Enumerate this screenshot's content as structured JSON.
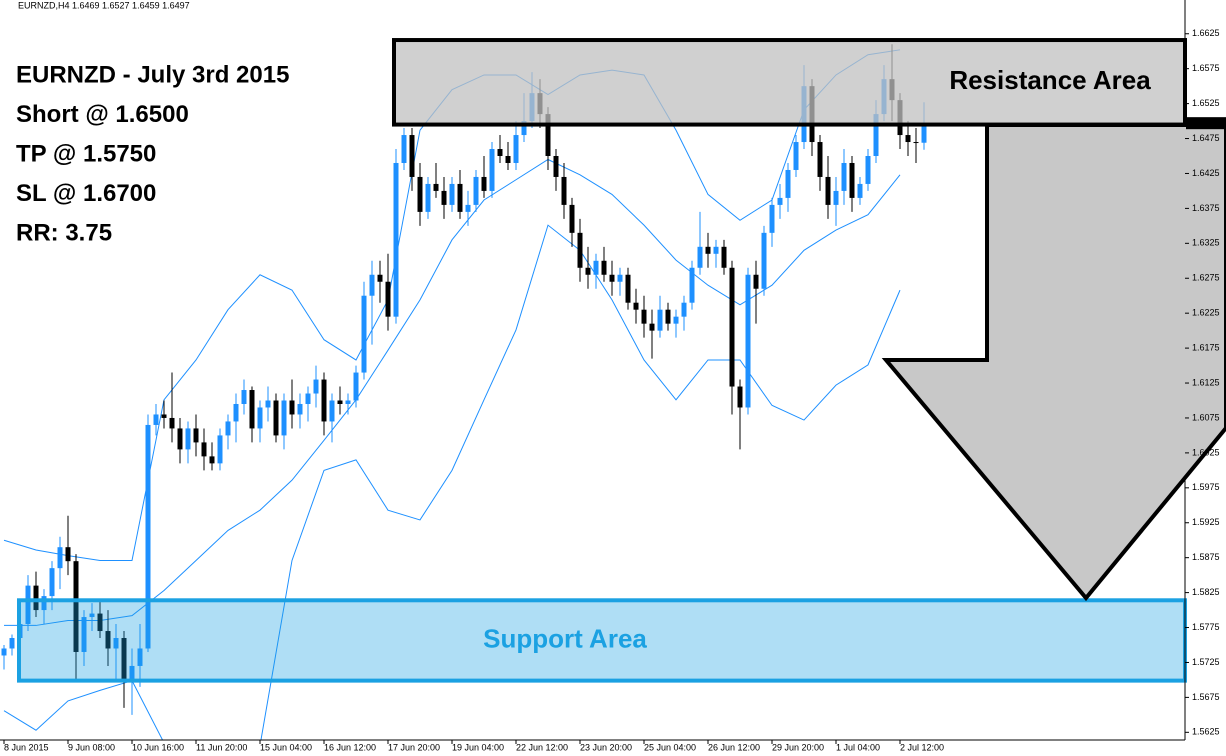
{
  "chart_data": {
    "type": "candlestick",
    "header": "EURNZD,H4  1.6469 1.6527 1.6459 1.6497",
    "annotations": [
      "EURNZD - July 3rd 2015",
      "Short @ 1.6500",
      "TP @ 1.5750",
      "SL @ 1.6700",
      "RR: 3.75"
    ],
    "zones": [
      {
        "label": "Resistance Area",
        "ylim": [
          1.6495,
          1.6616
        ],
        "color": "#c0c0c0"
      },
      {
        "label": "Support Area",
        "ylim": [
          1.5699,
          1.5814
        ],
        "color": "#1ba1e2"
      }
    ],
    "up_color": "#1e90ff",
    "down_color": "#000000",
    "band_color": "#1e90ff",
    "ylim": [
      1.5614,
      1.6659
    ],
    "yticks": [
      1.5625,
      1.5675,
      1.5725,
      1.5775,
      1.5825,
      1.5875,
      1.5925,
      1.5975,
      1.6025,
      1.6075,
      1.6125,
      1.6175,
      1.6225,
      1.6275,
      1.6325,
      1.6375,
      1.6425,
      1.6475,
      1.6525,
      1.6575,
      1.6625
    ],
    "categories": [
      "8 Jun 2015",
      null,
      null,
      null,
      null,
      null,
      null,
      null,
      "9 Jun 08:00",
      null,
      null,
      null,
      null,
      null,
      null,
      null,
      "10 Jun 16:00",
      null,
      null,
      null,
      null,
      null,
      null,
      null,
      "11 Jun 20:00",
      null,
      null,
      null,
      null,
      null,
      null,
      null,
      "15 Jun 04:00",
      null,
      null,
      null,
      null,
      null,
      null,
      null,
      "16 Jun 12:00",
      null,
      null,
      null,
      null,
      null,
      null,
      null,
      "17 Jun 20:00",
      null,
      null,
      null,
      null,
      null,
      null,
      null,
      "19 Jun 04:00",
      null,
      null,
      null,
      null,
      null,
      null,
      null,
      "22 Jun 12:00",
      null,
      null,
      null,
      null,
      null,
      null,
      null,
      "23 Jun 20:00",
      null,
      null,
      null,
      null,
      null,
      null,
      null,
      "25 Jun 04:00",
      null,
      null,
      null,
      null,
      null,
      null,
      null,
      "26 Jun 12:00",
      null,
      null,
      null,
      null,
      null,
      null,
      null,
      "29 Jun 20:00",
      null,
      null,
      null,
      null,
      null,
      null,
      null,
      "1 Jul 04:00",
      null,
      null,
      null,
      null,
      null,
      null,
      null,
      "2 Jul 12:00",
      null,
      null,
      null
    ],
    "ohlc": [
      [
        1.5735,
        1.575,
        1.5715,
        1.5745
      ],
      [
        1.5745,
        1.5765,
        1.5735,
        1.576
      ],
      [
        1.576,
        1.579,
        1.575,
        1.578
      ],
      [
        1.578,
        1.585,
        1.577,
        1.5835
      ],
      [
        1.5835,
        1.5855,
        1.579,
        1.58
      ],
      [
        1.58,
        1.583,
        1.578,
        1.582
      ],
      [
        1.582,
        1.587,
        1.58,
        1.586
      ],
      [
        1.586,
        1.5905,
        1.583,
        1.589
      ],
      [
        1.589,
        1.5935,
        1.585,
        1.587
      ],
      [
        1.587,
        1.588,
        1.57,
        1.574
      ],
      [
        1.574,
        1.58,
        1.572,
        1.579
      ],
      [
        1.579,
        1.581,
        1.577,
        1.5795
      ],
      [
        1.5795,
        1.5815,
        1.576,
        1.577
      ],
      [
        1.577,
        1.58,
        1.572,
        1.5745
      ],
      [
        1.5745,
        1.578,
        1.57,
        1.576
      ],
      [
        1.576,
        1.577,
        1.566,
        1.57
      ],
      [
        1.57,
        1.5745,
        1.565,
        1.572
      ],
      [
        1.572,
        1.578,
        1.569,
        1.5745
      ],
      [
        1.5745,
        1.608,
        1.574,
        1.6065
      ],
      [
        1.6065,
        1.6095,
        1.605,
        1.608
      ],
      [
        1.608,
        1.61,
        1.606,
        1.6075
      ],
      [
        1.6075,
        1.614,
        1.604,
        1.606
      ],
      [
        1.606,
        1.6075,
        1.601,
        1.603
      ],
      [
        1.603,
        1.607,
        1.601,
        1.606
      ],
      [
        1.606,
        1.608,
        1.602,
        1.604
      ],
      [
        1.604,
        1.606,
        1.6,
        1.602
      ],
      [
        1.602,
        1.604,
        1.6,
        1.601
      ],
      [
        1.601,
        1.606,
        1.6,
        1.605
      ],
      [
        1.605,
        1.608,
        1.603,
        1.607
      ],
      [
        1.607,
        1.611,
        1.604,
        1.6095
      ],
      [
        1.6095,
        1.613,
        1.608,
        1.6115
      ],
      [
        1.6115,
        1.612,
        1.604,
        1.606
      ],
      [
        1.606,
        1.61,
        1.604,
        1.609
      ],
      [
        1.609,
        1.612,
        1.607,
        1.61
      ],
      [
        1.61,
        1.611,
        1.604,
        1.605
      ],
      [
        1.605,
        1.611,
        1.603,
        1.61
      ],
      [
        1.61,
        1.613,
        1.606,
        1.608
      ],
      [
        1.608,
        1.611,
        1.606,
        1.6095
      ],
      [
        1.6095,
        1.612,
        1.607,
        1.611
      ],
      [
        1.611,
        1.615,
        1.609,
        1.613
      ],
      [
        1.613,
        1.614,
        1.605,
        1.607
      ],
      [
        1.607,
        1.611,
        1.604,
        1.61
      ],
      [
        1.61,
        1.612,
        1.608,
        1.6095
      ],
      [
        1.6095,
        1.611,
        1.608,
        1.61
      ],
      [
        1.61,
        1.615,
        1.609,
        1.614
      ],
      [
        1.614,
        1.627,
        1.613,
        1.625
      ],
      [
        1.625,
        1.63,
        1.618,
        1.628
      ],
      [
        1.628,
        1.63,
        1.624,
        1.627
      ],
      [
        1.627,
        1.631,
        1.62,
        1.622
      ],
      [
        1.622,
        1.646,
        1.621,
        1.644
      ],
      [
        1.644,
        1.649,
        1.643,
        1.648
      ],
      [
        1.648,
        1.649,
        1.64,
        1.642
      ],
      [
        1.642,
        1.644,
        1.635,
        1.637
      ],
      [
        1.637,
        1.642,
        1.636,
        1.641
      ],
      [
        1.641,
        1.644,
        1.639,
        1.64
      ],
      [
        1.64,
        1.642,
        1.636,
        1.638
      ],
      [
        1.638,
        1.642,
        1.637,
        1.641
      ],
      [
        1.641,
        1.643,
        1.636,
        1.637
      ],
      [
        1.637,
        1.64,
        1.635,
        1.638
      ],
      [
        1.638,
        1.643,
        1.637,
        1.642
      ],
      [
        1.642,
        1.645,
        1.639,
        1.64
      ],
      [
        1.64,
        1.647,
        1.639,
        1.646
      ],
      [
        1.646,
        1.648,
        1.644,
        1.645
      ],
      [
        1.645,
        1.647,
        1.643,
        1.644
      ],
      [
        1.644,
        1.65,
        1.643,
        1.648
      ],
      [
        1.648,
        1.654,
        1.647,
        1.65
      ],
      [
        1.65,
        1.657,
        1.649,
        1.654
      ],
      [
        1.654,
        1.656,
        1.649,
        1.651
      ],
      [
        1.651,
        1.652,
        1.643,
        1.645
      ],
      [
        1.645,
        1.646,
        1.64,
        1.642
      ],
      [
        1.642,
        1.644,
        1.636,
        1.638
      ],
      [
        1.638,
        1.639,
        1.632,
        1.634
      ],
      [
        1.634,
        1.636,
        1.627,
        1.629
      ],
      [
        1.629,
        1.632,
        1.626,
        1.628
      ],
      [
        1.628,
        1.631,
        1.626,
        1.63
      ],
      [
        1.63,
        1.632,
        1.627,
        1.628
      ],
      [
        1.628,
        1.63,
        1.625,
        1.627
      ],
      [
        1.627,
        1.629,
        1.625,
        1.628
      ],
      [
        1.628,
        1.629,
        1.623,
        1.624
      ],
      [
        1.624,
        1.626,
        1.621,
        1.623
      ],
      [
        1.623,
        1.625,
        1.619,
        1.621
      ],
      [
        1.621,
        1.623,
        1.616,
        1.62
      ],
      [
        1.62,
        1.625,
        1.619,
        1.623
      ],
      [
        1.623,
        1.624,
        1.62,
        1.621
      ],
      [
        1.621,
        1.623,
        1.619,
        1.622
      ],
      [
        1.622,
        1.625,
        1.62,
        1.624
      ],
      [
        1.624,
        1.63,
        1.623,
        1.629
      ],
      [
        1.629,
        1.637,
        1.628,
        1.632
      ],
      [
        1.632,
        1.634,
        1.629,
        1.631
      ],
      [
        1.631,
        1.633,
        1.629,
        1.632
      ],
      [
        1.632,
        1.633,
        1.628,
        1.629
      ],
      [
        1.629,
        1.63,
        1.608,
        1.612
      ],
      [
        1.612,
        1.613,
        1.603,
        1.609
      ],
      [
        1.609,
        1.629,
        1.608,
        1.628
      ],
      [
        1.628,
        1.63,
        1.621,
        1.626
      ],
      [
        1.626,
        1.635,
        1.625,
        1.634
      ],
      [
        1.634,
        1.639,
        1.632,
        1.638
      ],
      [
        1.638,
        1.641,
        1.636,
        1.639
      ],
      [
        1.639,
        1.644,
        1.637,
        1.643
      ],
      [
        1.643,
        1.648,
        1.642,
        1.647
      ],
      [
        1.647,
        1.658,
        1.646,
        1.655
      ],
      [
        1.655,
        1.656,
        1.645,
        1.647
      ],
      [
        1.647,
        1.648,
        1.64,
        1.642
      ],
      [
        1.642,
        1.645,
        1.636,
        1.638
      ],
      [
        1.638,
        1.642,
        1.635,
        1.64
      ],
      [
        1.64,
        1.646,
        1.638,
        1.644
      ],
      [
        1.644,
        1.645,
        1.637,
        1.639
      ],
      [
        1.639,
        1.642,
        1.638,
        1.641
      ],
      [
        1.641,
        1.646,
        1.64,
        1.645
      ],
      [
        1.645,
        1.653,
        1.644,
        1.651
      ],
      [
        1.651,
        1.658,
        1.65,
        1.656
      ],
      [
        1.656,
        1.661,
        1.65,
        1.653
      ],
      [
        1.653,
        1.654,
        1.646,
        1.648
      ],
      [
        1.648,
        1.65,
        1.645,
        1.647
      ],
      [
        1.647,
        1.649,
        1.644,
        1.6469
      ],
      [
        1.6469,
        1.6527,
        1.6459,
        1.6497
      ]
    ],
    "bands": [
      {
        "values": [
          1.59,
          1.5886,
          1.5878,
          1.5871,
          1.5871,
          1.6101,
          1.6158,
          1.623,
          1.628,
          1.6258,
          1.6187,
          1.6158,
          1.6244,
          1.6487,
          1.6545,
          1.6566,
          1.6566,
          1.6538,
          1.6566,
          1.6573,
          1.6566,
          1.6487,
          1.6395,
          1.6358,
          1.6387,
          1.6516,
          1.6566,
          1.6595,
          1.6602
        ]
      },
      {
        "values": [
          1.5778,
          1.5778,
          1.5785,
          1.5785,
          1.5792,
          1.5828,
          1.5871,
          1.5914,
          1.5943,
          1.5986,
          1.6043,
          1.6101,
          1.6172,
          1.6244,
          1.633,
          1.6387,
          1.6416,
          1.6445,
          1.6423,
          1.6395,
          1.6351,
          1.6301,
          1.6265,
          1.6237,
          1.6265,
          1.6315,
          1.6344,
          1.6366,
          1.6423
        ]
      },
      {
        "values": [
          1.5656,
          1.5628,
          1.567,
          1.5685,
          1.5699,
          1.561,
          1.5606,
          1.5606,
          1.5606,
          1.5871,
          1.6,
          1.6015,
          1.5943,
          1.5929,
          1.6,
          1.6101,
          1.6201,
          1.6351,
          1.6315,
          1.6244,
          1.6158,
          1.6101,
          1.6158,
          1.6158,
          1.6093,
          1.6072,
          1.6122,
          1.6151,
          1.6258
        ]
      }
    ]
  }
}
